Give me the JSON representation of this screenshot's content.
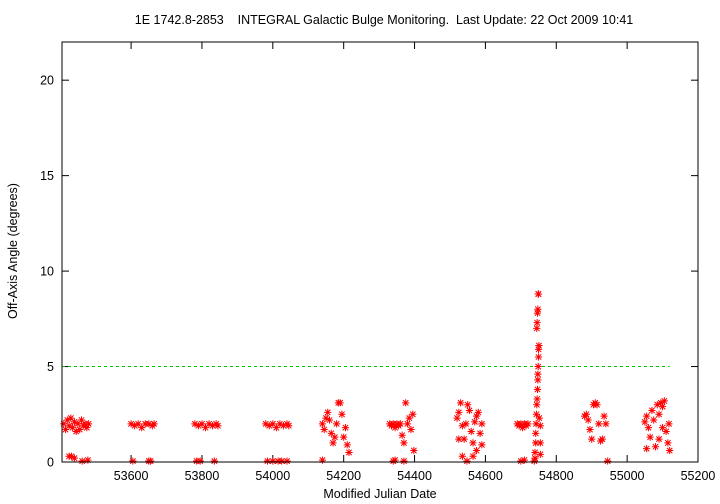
{
  "chart_data": {
    "type": "scatter",
    "title": "1E 1742.8-2853    INTEGRAL Galactic Bulge Monitoring.  Last Update: 22 Oct 2009 10:41",
    "xlabel": "Modified Julian Date",
    "ylabel": "Off-Axis Angle (degrees)",
    "xlim": [
      53405,
      55200
    ],
    "ylim": [
      0,
      22
    ],
    "x_ticks": [
      53600,
      53800,
      54000,
      54200,
      54400,
      54600,
      54800,
      55000,
      55200
    ],
    "y_ticks": [
      0,
      5,
      10,
      15,
      20
    ],
    "grid": false,
    "legend": "none",
    "point_color": "#ff0000",
    "threshold_line": {
      "y": 5,
      "x_range": [
        53405,
        55120
      ],
      "color": "#00cc00",
      "style": "dashed"
    },
    "series": [
      {
        "marker": "asterisk",
        "points": [
          [
            53410,
            2.0
          ],
          [
            53415,
            1.7
          ],
          [
            53420,
            2.2
          ],
          [
            53425,
            1.9
          ],
          [
            53430,
            2.3
          ],
          [
            53435,
            1.8
          ],
          [
            53440,
            2.1
          ],
          [
            53445,
            1.6
          ],
          [
            53450,
            2.0
          ],
          [
            53455,
            1.7
          ],
          [
            53460,
            2.2
          ],
          [
            53465,
            1.9
          ],
          [
            53470,
            2.0
          ],
          [
            53475,
            1.8
          ],
          [
            53480,
            2.0
          ],
          [
            53425,
            0.3
          ],
          [
            53432,
            0.3
          ],
          [
            53440,
            0.2
          ],
          [
            53462,
            0.05
          ],
          [
            53478,
            0.1
          ],
          [
            53600,
            2.0
          ],
          [
            53610,
            1.9
          ],
          [
            53620,
            2.0
          ],
          [
            53630,
            1.8
          ],
          [
            53640,
            2.0
          ],
          [
            53650,
            2.0
          ],
          [
            53660,
            1.9
          ],
          [
            53665,
            2.0
          ],
          [
            53605,
            0.05
          ],
          [
            53650,
            0.05
          ],
          [
            53655,
            0.05
          ],
          [
            53780,
            2.0
          ],
          [
            53790,
            1.9
          ],
          [
            53800,
            2.0
          ],
          [
            53810,
            1.8
          ],
          [
            53820,
            2.0
          ],
          [
            53830,
            1.9
          ],
          [
            53840,
            2.0
          ],
          [
            53845,
            1.9
          ],
          [
            53785,
            0.05
          ],
          [
            53795,
            0.05
          ],
          [
            53835,
            0.05
          ],
          [
            53980,
            2.0
          ],
          [
            53990,
            1.9
          ],
          [
            54000,
            2.0
          ],
          [
            54010,
            1.8
          ],
          [
            54020,
            2.0
          ],
          [
            54030,
            1.9
          ],
          [
            54040,
            2.0
          ],
          [
            54045,
            1.9
          ],
          [
            53985,
            0.05
          ],
          [
            54000,
            0.05
          ],
          [
            54015,
            0.05
          ],
          [
            54025,
            0.05
          ],
          [
            54040,
            0.05
          ],
          [
            54140,
            2.0
          ],
          [
            54145,
            1.7
          ],
          [
            54150,
            2.3
          ],
          [
            54155,
            2.6
          ],
          [
            54160,
            2.2
          ],
          [
            54165,
            1.5
          ],
          [
            54170,
            1.0
          ],
          [
            54175,
            1.3
          ],
          [
            54180,
            2.0
          ],
          [
            54185,
            3.1
          ],
          [
            54190,
            3.1
          ],
          [
            54195,
            2.5
          ],
          [
            54200,
            1.3
          ],
          [
            54205,
            1.8
          ],
          [
            54210,
            0.9
          ],
          [
            54215,
            0.5
          ],
          [
            54140,
            0.1
          ],
          [
            54330,
            2.0
          ],
          [
            54335,
            1.9
          ],
          [
            54340,
            2.0
          ],
          [
            54345,
            1.8
          ],
          [
            54350,
            2.0
          ],
          [
            54355,
            1.9
          ],
          [
            54360,
            2.0
          ],
          [
            54365,
            1.4
          ],
          [
            54370,
            1.0
          ],
          [
            54375,
            3.1
          ],
          [
            54380,
            2.0
          ],
          [
            54385,
            2.3
          ],
          [
            54390,
            1.7
          ],
          [
            54395,
            2.5
          ],
          [
            54398,
            0.6
          ],
          [
            54340,
            0.05
          ],
          [
            54345,
            0.1
          ],
          [
            54370,
            0.05
          ],
          [
            54520,
            2.3
          ],
          [
            54525,
            2.6
          ],
          [
            54530,
            3.1
          ],
          [
            54535,
            1.9
          ],
          [
            54540,
            1.2
          ],
          [
            54545,
            2.0
          ],
          [
            54550,
            3.0
          ],
          [
            54555,
            2.7
          ],
          [
            54560,
            1.6
          ],
          [
            54565,
            1.0
          ],
          [
            54570,
            2.1
          ],
          [
            54575,
            2.4
          ],
          [
            54580,
            2.6
          ],
          [
            54585,
            1.5
          ],
          [
            54590,
            0.9
          ],
          [
            54590,
            2.0
          ],
          [
            54525,
            1.2
          ],
          [
            54535,
            0.3
          ],
          [
            54548,
            0.05
          ],
          [
            54565,
            0.3
          ],
          [
            54575,
            0.6
          ],
          [
            54690,
            2.0
          ],
          [
            54695,
            1.9
          ],
          [
            54700,
            2.0
          ],
          [
            54705,
            1.8
          ],
          [
            54710,
            2.0
          ],
          [
            54715,
            1.9
          ],
          [
            54720,
            2.0
          ],
          [
            54700,
            0.05
          ],
          [
            54710,
            0.1
          ],
          [
            54740,
            0.2
          ],
          [
            54740,
            0.5
          ],
          [
            54742,
            1.0
          ],
          [
            54742,
            1.5
          ],
          [
            54743,
            2.0
          ],
          [
            54744,
            2.5
          ],
          [
            54745,
            3.0
          ],
          [
            54746,
            3.3
          ],
          [
            54747,
            3.8
          ],
          [
            54748,
            4.3
          ],
          [
            54748,
            4.6
          ],
          [
            54749,
            5.0
          ],
          [
            54750,
            5.5
          ],
          [
            54750,
            5.9
          ],
          [
            54751,
            6.1
          ],
          [
            54745,
            7.0
          ],
          [
            54746,
            7.3
          ],
          [
            54747,
            7.8
          ],
          [
            54748,
            8.0
          ],
          [
            54749,
            8.8
          ],
          [
            54750,
            8.8
          ],
          [
            54752,
            2.3
          ],
          [
            54755,
            1.9
          ],
          [
            54755,
            1.0
          ],
          [
            54755,
            0.4
          ],
          [
            54738,
            0.05
          ],
          [
            54880,
            2.4
          ],
          [
            54885,
            2.5
          ],
          [
            54890,
            2.2
          ],
          [
            54895,
            1.7
          ],
          [
            54900,
            1.2
          ],
          [
            54905,
            3.0
          ],
          [
            54910,
            3.1
          ],
          [
            54915,
            3.0
          ],
          [
            54920,
            2.0
          ],
          [
            54925,
            1.1
          ],
          [
            54930,
            1.2
          ],
          [
            54935,
            2.4
          ],
          [
            54940,
            2.0
          ],
          [
            54945,
            0.05
          ],
          [
            55050,
            2.1
          ],
          [
            55055,
            2.4
          ],
          [
            55060,
            1.8
          ],
          [
            55065,
            1.3
          ],
          [
            55070,
            2.7
          ],
          [
            55075,
            2.2
          ],
          [
            55080,
            0.8
          ],
          [
            55085,
            3.0
          ],
          [
            55090,
            2.5
          ],
          [
            55095,
            3.1
          ],
          [
            55100,
            2.9
          ],
          [
            55105,
            3.2
          ],
          [
            55110,
            1.6
          ],
          [
            55115,
            1.0
          ],
          [
            55118,
            2.0
          ],
          [
            55120,
            0.6
          ],
          [
            55055,
            0.7
          ],
          [
            55090,
            1.2
          ],
          [
            55100,
            1.8
          ]
        ]
      }
    ]
  }
}
